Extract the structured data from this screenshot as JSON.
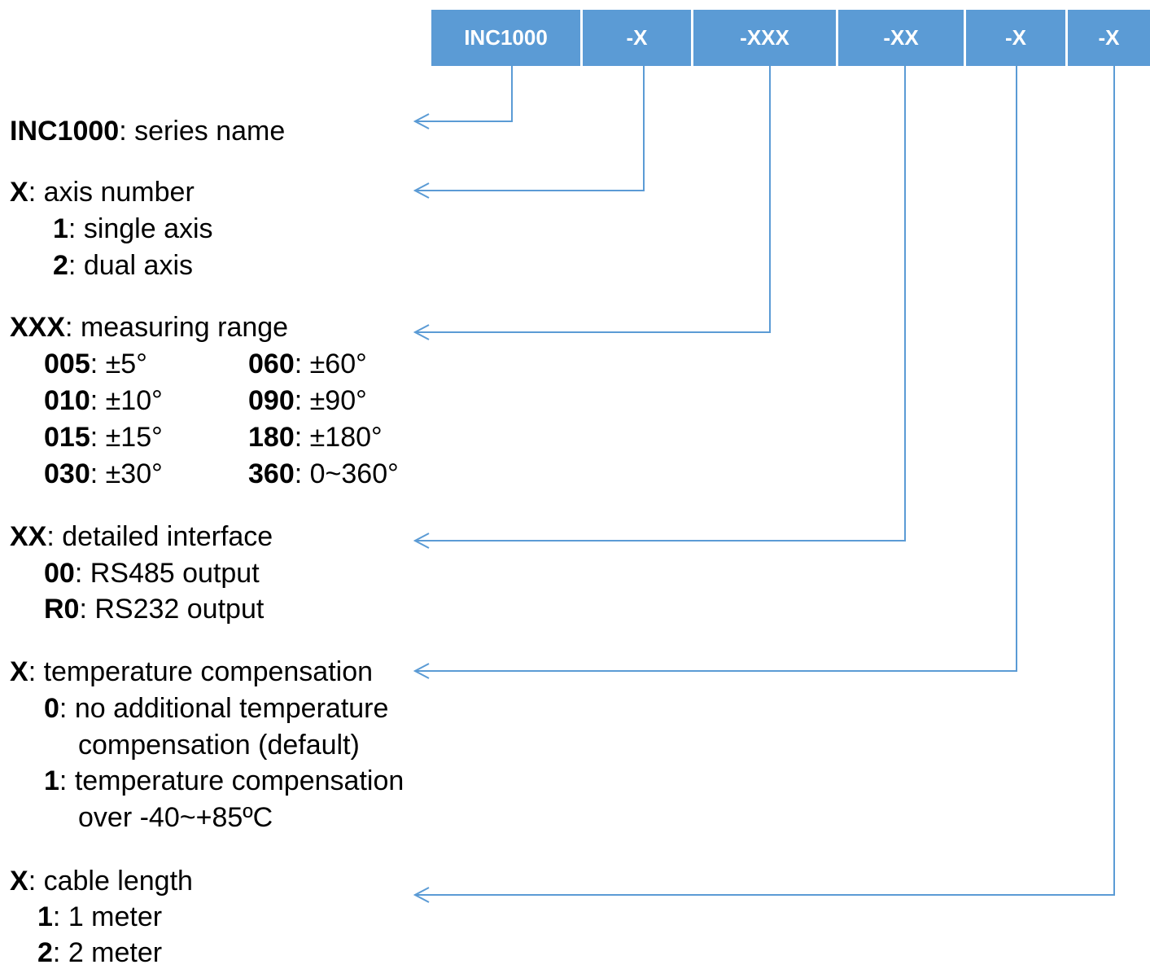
{
  "segments": [
    "INC1000",
    "-X",
    "-XXX",
    "-XX",
    "-X",
    "-X"
  ],
  "colors": {
    "segment_fill": "#5b9bd5",
    "segment_text": "#ffffff",
    "connector": "#5b9bd5"
  },
  "sections": {
    "series": {
      "code": "INC1000",
      "desc": ": series name"
    },
    "axis": {
      "code": "X",
      "desc": ": axis number",
      "options": [
        {
          "code": "1",
          "desc": ": single axis"
        },
        {
          "code": "2",
          "desc": ": dual axis"
        }
      ]
    },
    "range": {
      "code": "XXX",
      "desc": ": measuring range",
      "options": [
        {
          "code": "005",
          "desc": ": ±5°"
        },
        {
          "code": "010",
          "desc": ": ±10°"
        },
        {
          "code": "015",
          "desc": ": ±15°"
        },
        {
          "code": "030",
          "desc": ": ±30°"
        },
        {
          "code": "060",
          "desc": ": ±60°"
        },
        {
          "code": "090",
          "desc": ": ±90°"
        },
        {
          "code": "180",
          "desc": ": ±180°"
        },
        {
          "code": "360",
          "desc": ": 0~360°"
        }
      ]
    },
    "interface": {
      "code": "XX",
      "desc": ": detailed interface",
      "options": [
        {
          "code": "00",
          "desc": ": RS485 output"
        },
        {
          "code": "R0",
          "desc": ": RS232 output"
        }
      ]
    },
    "temperature": {
      "code": "X",
      "desc": ": temperature compensation",
      "options": [
        {
          "code": "0",
          "desc": ": no additional temperature",
          "desc2": "compensation (default)"
        },
        {
          "code": "1",
          "desc": ": temperature compensation",
          "desc2": "over -40~+85ºC"
        }
      ]
    },
    "cable": {
      "code": "X",
      "desc": ": cable length",
      "options": [
        {
          "code": "1",
          "desc": ": 1 meter"
        },
        {
          "code": "2",
          "desc": ": 2 meter"
        }
      ]
    }
  }
}
